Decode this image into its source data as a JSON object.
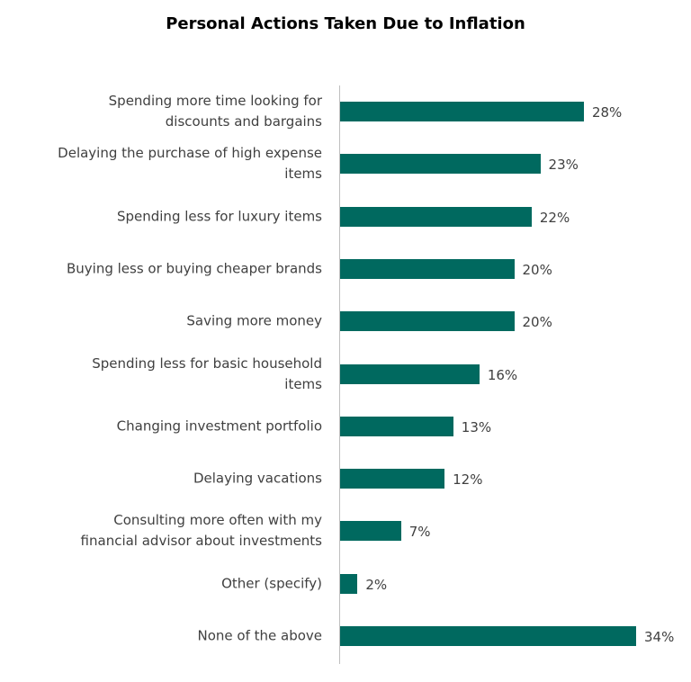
{
  "chart_data": {
    "type": "bar",
    "orientation": "horizontal",
    "title": "Personal Actions Taken Due to Inflation",
    "categories": [
      "Spending more time looking for\ndiscounts and bargains",
      "Delaying the purchase of high expense\nitems",
      "Spending less for luxury items",
      "Buying less or buying cheaper brands",
      "Saving more money",
      "Spending less for basic household\nitems",
      "Changing investment portfolio",
      "Delaying vacations",
      "Consulting more often with my\nfinancial advisor about investments",
      "Other (specify)",
      "None of the above"
    ],
    "values": [
      28,
      23,
      22,
      20,
      20,
      16,
      13,
      12,
      7,
      2,
      34
    ],
    "value_labels": [
      "28%",
      "23%",
      "22%",
      "20%",
      "20%",
      "16%",
      "13%",
      "12%",
      "7%",
      "2%",
      "34%"
    ],
    "color": "#00695f"
  }
}
